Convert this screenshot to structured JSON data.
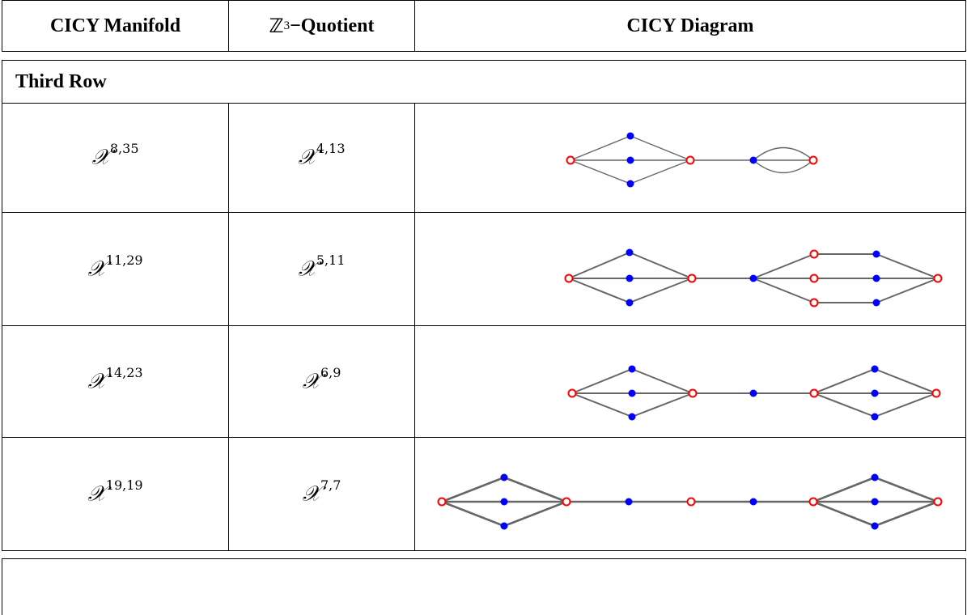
{
  "header": {
    "col1": "CICY Manifold",
    "col2_prefix": "ℤ",
    "col2_subscript": "3",
    "col2_suffix": "−Quotient",
    "col3": "CICY Diagram"
  },
  "section": {
    "label": "Third Row"
  },
  "rows": [
    {
      "manifold": {
        "symbol": "𝒳",
        "sup": "8,35"
      },
      "quotient": {
        "symbol": "𝒳",
        "sup": "4,13"
      }
    },
    {
      "manifold": {
        "symbol": "𝒳",
        "sup": "11,29"
      },
      "quotient": {
        "symbol": "𝒳",
        "sup": "5,11"
      }
    },
    {
      "manifold": {
        "symbol": "𝒳",
        "sup": "14,23"
      },
      "quotient": {
        "symbol": "𝒳",
        "sup": "6,9"
      }
    },
    {
      "manifold": {
        "symbol": "𝒳",
        "sup": "19,19"
      },
      "quotient": {
        "symbol": "𝒳",
        "sup": "7,7"
      }
    }
  ],
  "colors": {
    "filled_node": "#0000ff",
    "open_node": "#ff0000",
    "edge": "#666666"
  }
}
